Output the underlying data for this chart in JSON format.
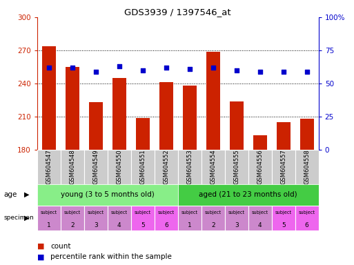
{
  "title": "GDS3939 / 1397546_at",
  "samples": [
    "GSM604547",
    "GSM604548",
    "GSM604549",
    "GSM604550",
    "GSM604551",
    "GSM604552",
    "GSM604553",
    "GSM604554",
    "GSM604555",
    "GSM604556",
    "GSM604557",
    "GSM604558"
  ],
  "bar_values": [
    274,
    255,
    223,
    245,
    209,
    241,
    238,
    269,
    224,
    193,
    205,
    208
  ],
  "bar_base": 180,
  "blue_dots": [
    62,
    62,
    59,
    63,
    60,
    62,
    61,
    62,
    60,
    59,
    59,
    59
  ],
  "left_yticks": [
    180,
    210,
    240,
    270,
    300
  ],
  "right_yticks": [
    0,
    25,
    50,
    75,
    100
  ],
  "ylim_left": [
    180,
    300
  ],
  "ylim_right": [
    0,
    100
  ],
  "bar_color": "#cc2200",
  "dot_color": "#0000cc",
  "age_young_label": "young (3 to 5 months old)",
  "age_aged_label": "aged (21 to 23 months old)",
  "age_young_color": "#88ee88",
  "age_aged_color": "#44cc44",
  "specimen_numbers": [
    "1",
    "2",
    "3",
    "4",
    "5",
    "6",
    "1",
    "2",
    "3",
    "4",
    "5",
    "6"
  ],
  "spec_colors_light": "#cc88cc",
  "spec_colors_dark": "#ee66ee",
  "tick_bg_color": "#cccccc",
  "legend_count_color": "#cc2200",
  "legend_dot_color": "#0000cc",
  "grid_color": "#000000",
  "right_axis_color": "#0000cc",
  "left_axis_color": "#cc2200",
  "right_tick_labels": [
    "0",
    "25",
    "50",
    "75",
    "100%"
  ]
}
